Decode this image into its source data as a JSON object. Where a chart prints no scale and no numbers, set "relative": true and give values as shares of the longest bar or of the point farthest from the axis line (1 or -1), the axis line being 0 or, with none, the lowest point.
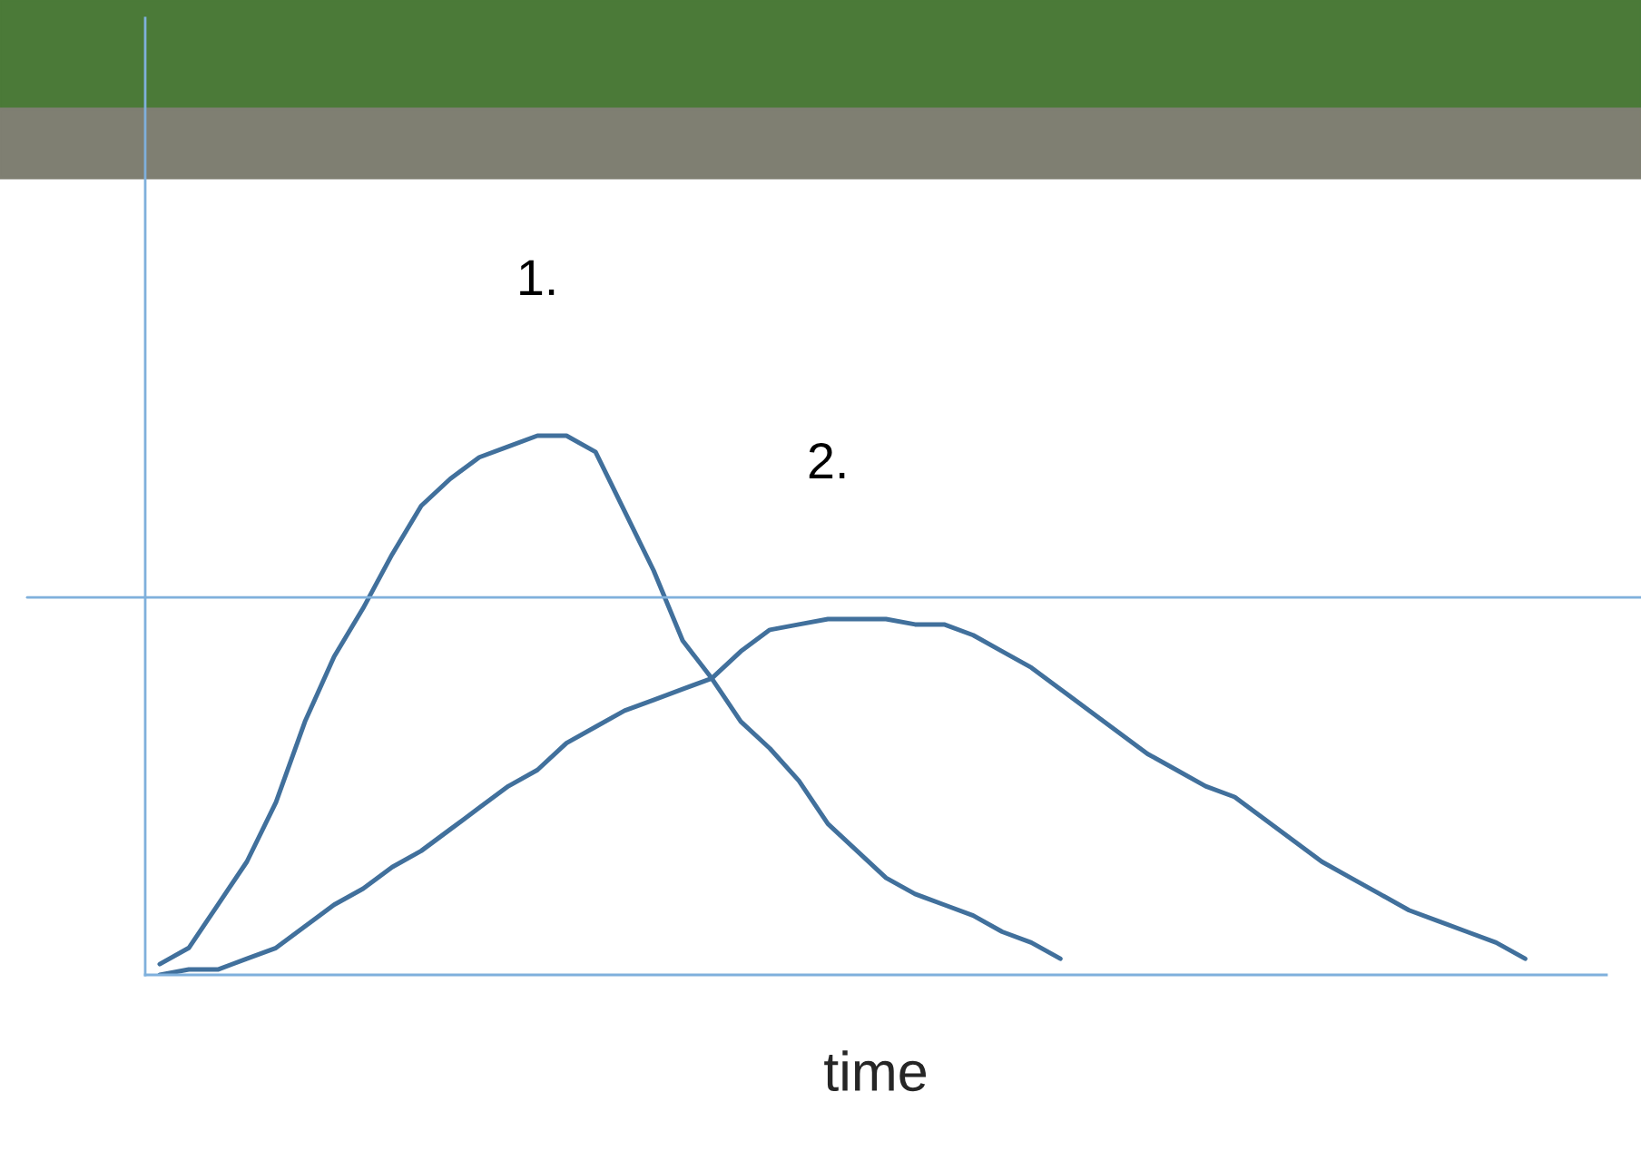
{
  "chart_data": {
    "type": "line",
    "relative": true,
    "xlabel": "time",
    "tick_labels": false,
    "legend": false,
    "marker": "none",
    "line_style": "solid",
    "categories": [
      null,
      null,
      null,
      null,
      null,
      null,
      null,
      null,
      null,
      null,
      null,
      null,
      null,
      null,
      null,
      null,
      null,
      null,
      null,
      null,
      null,
      null,
      null,
      null,
      null,
      null,
      null,
      null,
      null,
      null,
      null,
      null,
      null,
      null,
      null,
      null,
      null,
      null,
      null,
      null,
      null,
      null,
      null,
      null,
      null,
      null,
      null,
      null
    ],
    "ref_lines": [
      {
        "axis": "y",
        "value": 0.7,
        "color": "#7fb0dc"
      }
    ],
    "series": [
      {
        "name": "1.",
        "color": "#41709c",
        "values": [
          0.02,
          0.05,
          0.13,
          0.21,
          0.32,
          0.47,
          0.59,
          0.68,
          0.78,
          0.87,
          0.92,
          0.96,
          0.98,
          1.0,
          1.0,
          0.97,
          0.86,
          0.75,
          0.62,
          0.55,
          0.47,
          0.42,
          0.36,
          0.28,
          0.23,
          0.18,
          0.15,
          0.13,
          0.11,
          0.08,
          0.06,
          0.03,
          null,
          null,
          null,
          null,
          null,
          null,
          null,
          null,
          null,
          null,
          null,
          null,
          null,
          null,
          null,
          null
        ]
      },
      {
        "name": "2.",
        "color": "#41709c",
        "values": [
          0.0,
          0.01,
          0.01,
          0.03,
          0.05,
          0.09,
          0.13,
          0.16,
          0.2,
          0.23,
          0.27,
          0.31,
          0.35,
          0.38,
          0.43,
          0.46,
          0.49,
          0.51,
          0.53,
          0.55,
          0.6,
          0.64,
          0.65,
          0.66,
          0.66,
          0.66,
          0.65,
          0.65,
          0.63,
          0.6,
          0.57,
          0.53,
          0.49,
          0.45,
          0.41,
          0.38,
          0.35,
          0.33,
          0.29,
          0.25,
          0.21,
          0.18,
          0.15,
          0.12,
          0.1,
          0.08,
          0.06,
          0.03
        ]
      }
    ]
  }
}
